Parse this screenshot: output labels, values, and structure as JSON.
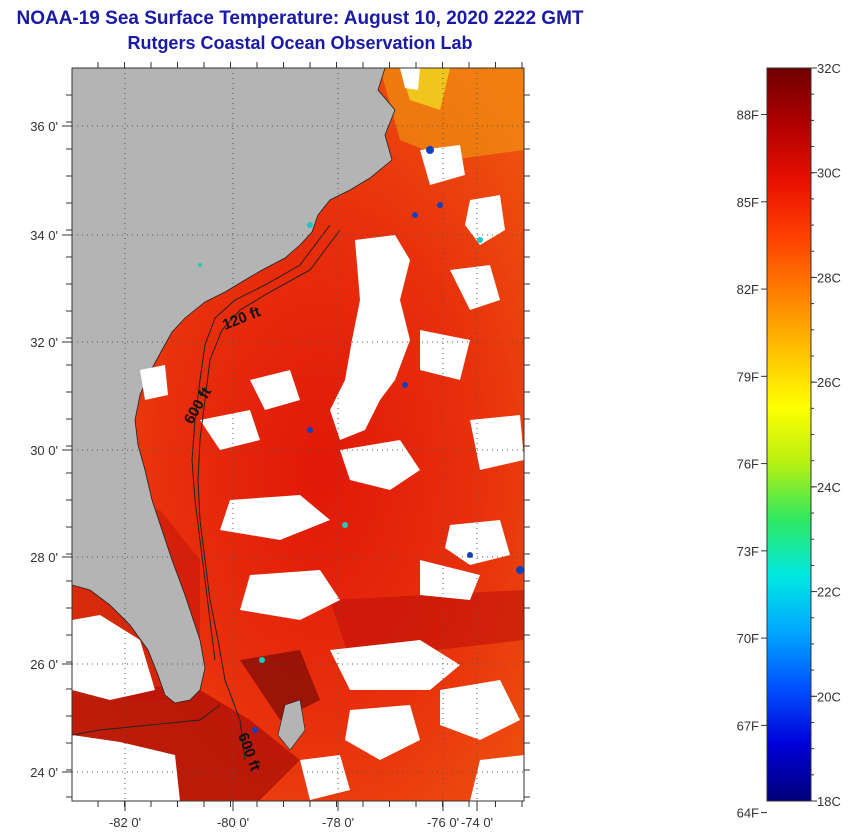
{
  "title": {
    "line1": "NOAA-19 Sea Surface Temperature:  August 10, 2020 2222 GMT",
    "line2": "Rutgers Coastal Ocean Observation Lab"
  },
  "map": {
    "lon_labels": [
      "-82 0'",
      "-80 0'",
      "-78 0'",
      "-76 0'",
      "-74 0'"
    ],
    "lat_labels": [
      "36 0'",
      "34 0'",
      "32 0'",
      "30 0'",
      "28 0'",
      "26 0'",
      "24 0'"
    ],
    "contour_labels": [
      "120 ft",
      "600 ft",
      "600 ft"
    ],
    "colors": {
      "land": "#b4b4b4",
      "cloud": "#ffffff",
      "ocean_warm": "#e8200c",
      "ocean_hot": "#a80a05",
      "ocean_mid": "#f06010"
    }
  },
  "colorbar": {
    "f_labels": [
      "88F",
      "85F",
      "82F",
      "79F",
      "76F",
      "73F",
      "70F",
      "67F",
      "64F"
    ],
    "c_labels": [
      "32C",
      "30C",
      "28C",
      "26C",
      "24C",
      "22C",
      "20C",
      "18C"
    ],
    "range_c": [
      18,
      32
    ],
    "stops": [
      "#00007a",
      "#0000d8",
      "#0050ff",
      "#00a8ff",
      "#00e8e0",
      "#30e860",
      "#b8f010",
      "#ffff00",
      "#ffc000",
      "#ff8000",
      "#ff4000",
      "#e81000",
      "#b00000",
      "#700000"
    ]
  }
}
